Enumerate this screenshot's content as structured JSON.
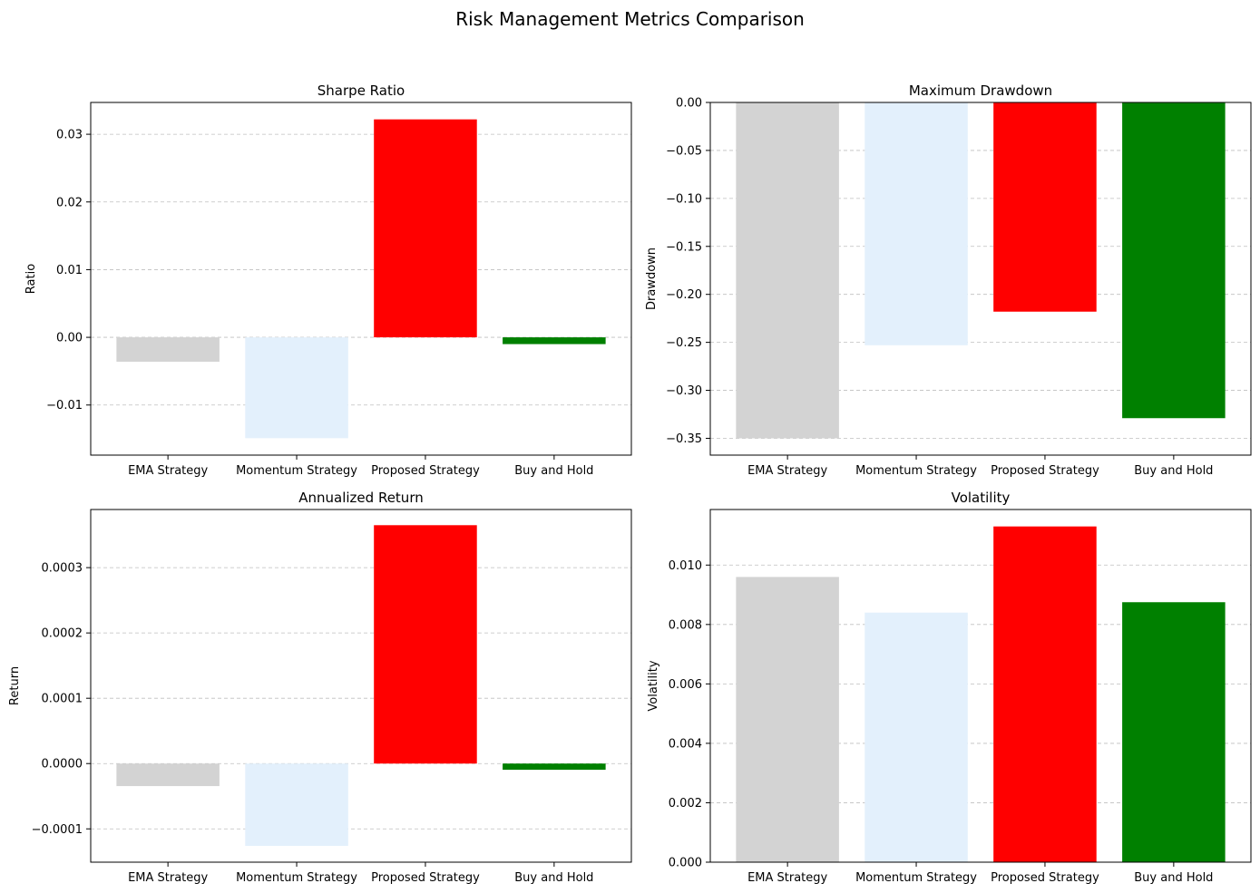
{
  "suptitle": "Risk Management Metrics Comparison",
  "colors": [
    "#d3d3d3",
    "#e3f0fc",
    "#ff0000",
    "#008000"
  ],
  "chart_data": [
    {
      "type": "bar",
      "title": "Sharpe Ratio",
      "ylabel": "Ratio",
      "xlabel": "",
      "categories": [
        "EMA Strategy",
        "Momentum Strategy",
        "Proposed Strategy",
        "Buy and Hold"
      ],
      "values": [
        -0.0036,
        -0.0149,
        0.0322,
        -0.001
      ],
      "ylim": [
        -0.0174,
        0.0347
      ],
      "yticks": [
        -0.01,
        0.0,
        0.01,
        0.02,
        0.03
      ],
      "ytick_labels": [
        "−0.01",
        "0.00",
        "0.01",
        "0.02",
        "0.03"
      ],
      "grid": "y"
    },
    {
      "type": "bar",
      "title": "Maximum Drawdown",
      "ylabel": "Drawdown",
      "xlabel": "",
      "categories": [
        "EMA Strategy",
        "Momentum Strategy",
        "Proposed Strategy",
        "Buy and Hold"
      ],
      "values": [
        -0.35,
        -0.253,
        -0.218,
        -0.329
      ],
      "ylim": [
        -0.3675,
        0.0
      ],
      "yticks": [
        -0.35,
        -0.3,
        -0.25,
        -0.2,
        -0.15,
        -0.1,
        -0.05,
        0.0
      ],
      "ytick_labels": [
        "−0.35",
        "−0.30",
        "−0.25",
        "−0.20",
        "−0.15",
        "−0.10",
        "−0.05",
        "0.00"
      ],
      "grid": "y"
    },
    {
      "type": "bar",
      "title": "Annualized Return",
      "ylabel": "Return",
      "xlabel": "",
      "categories": [
        "EMA Strategy",
        "Momentum Strategy",
        "Proposed Strategy",
        "Buy and Hold"
      ],
      "values": [
        -3.45e-05,
        -0.000126,
        0.000365,
        -9.5e-06
      ],
      "ylim": [
        -0.000151,
        0.000389
      ],
      "yticks": [
        -0.0001,
        0.0,
        0.0001,
        0.0002,
        0.0003
      ],
      "ytick_labels": [
        "−0.0001",
        "0.0000",
        "0.0001",
        "0.0002",
        "0.0003"
      ],
      "grid": "y"
    },
    {
      "type": "bar",
      "title": "Volatility",
      "ylabel": "Volatility",
      "xlabel": "",
      "categories": [
        "EMA Strategy",
        "Momentum Strategy",
        "Proposed Strategy",
        "Buy and Hold"
      ],
      "values": [
        0.0096,
        0.0084,
        0.0113,
        0.00875
      ],
      "ylim": [
        0.0,
        0.01187
      ],
      "yticks": [
        0.0,
        0.002,
        0.004,
        0.006,
        0.008,
        0.01
      ],
      "ytick_labels": [
        "0.000",
        "0.002",
        "0.004",
        "0.006",
        "0.008",
        "0.010"
      ],
      "grid": "y"
    }
  ]
}
